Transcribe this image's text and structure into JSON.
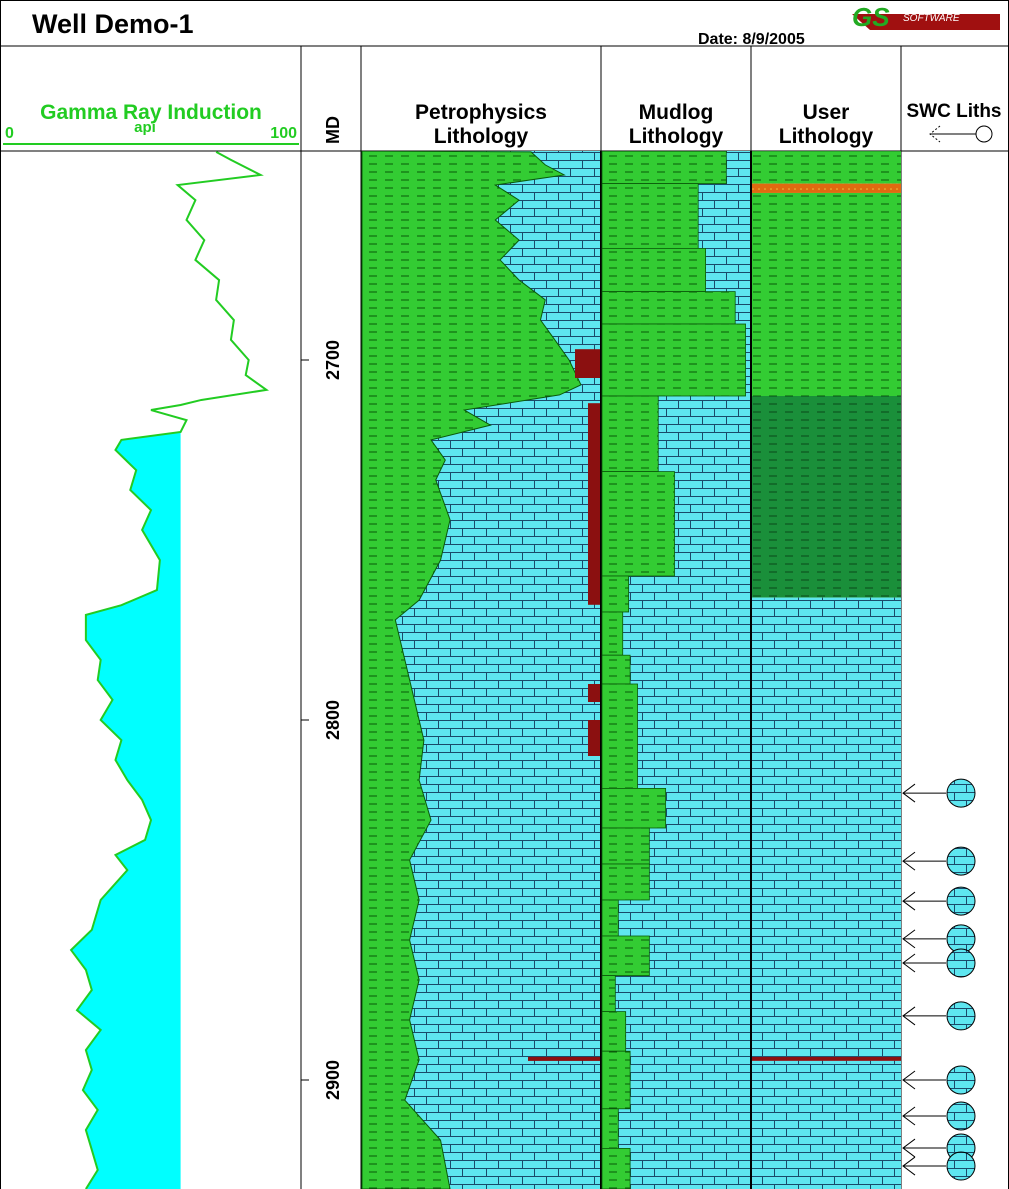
{
  "header": {
    "title": "Well Demo-1",
    "date": "Date: 8/9/2005",
    "logo_text": "GS SOFTWARE INC."
  },
  "tracks": {
    "gr": {
      "title": "Gamma Ray Induction",
      "unit": "api",
      "min_label": "0",
      "max_label": "100",
      "color": "#22cc22",
      "fill_color": "#00ffff"
    },
    "depth": {
      "title": "MD"
    },
    "petro": {
      "title_line1": "Petrophysics",
      "title_line2": "Lithology"
    },
    "mudlog": {
      "title_line1": "Mudlog",
      "title_line2": "Lithology"
    },
    "user": {
      "title_line1": "User",
      "title_line2": "Lithology"
    },
    "swc": {
      "title": "SWC Liths"
    }
  },
  "colors": {
    "shale": "#33cc33",
    "dark_shale": "#1a8f3a",
    "limestone": "#5ee6f0",
    "coal": "#8b1010",
    "sand": "#e06a10"
  },
  "chart_data": {
    "type": "line",
    "depth_range": [
      2642,
      2930
    ],
    "depth_ticks": [
      "2700",
      "2800",
      "2900"
    ],
    "gamma_ray": {
      "xlim": [
        0,
        100
      ],
      "cutoff_api": 60,
      "depth": [
        2642.2,
        2644.4,
        2648.6,
        2651.4,
        2655.6,
        2661.1,
        2666.7,
        2672.2,
        2677.8,
        2683.3,
        2688.9,
        2694.4,
        2700,
        2704.2,
        2708.3,
        2711.1,
        2712.5,
        2713.9,
        2716.7,
        2720,
        2722.2,
        2725,
        2730.6,
        2736.1,
        2741.7,
        2747.2,
        2755.6,
        2763.9,
        2768.1,
        2770.8,
        2777.8,
        2783.3,
        2788.9,
        2794.4,
        2800,
        2805.6,
        2811.1,
        2816.7,
        2822.2,
        2827.8,
        2833.3,
        2837.5,
        2841.7,
        2850,
        2858.3,
        2863.9,
        2869.4,
        2875,
        2880.6,
        2886.1,
        2891.7,
        2897.2,
        2902.8,
        2908.3,
        2913.9,
        2919.4,
        2925,
        2930.3
      ],
      "api": [
        72,
        77,
        87,
        59,
        65,
        62,
        68,
        65,
        73,
        72,
        78,
        77,
        83,
        82,
        89,
        67,
        60,
        50,
        62,
        60,
        40,
        38,
        45,
        43,
        50,
        47,
        53,
        52,
        40,
        28,
        28,
        33,
        32,
        37,
        33,
        40,
        38,
        42,
        47,
        50,
        48,
        38,
        42,
        33,
        30,
        23,
        28,
        30,
        25,
        33,
        28,
        30,
        27,
        32,
        28,
        30,
        32,
        28
      ]
    },
    "petrophysics_shale_pct": {
      "depth": [
        2642.2,
        2645.8,
        2648.6,
        2651.4,
        2655.6,
        2661.1,
        2666.7,
        2672.2,
        2677.8,
        2683.3,
        2688.9,
        2694.4,
        2700,
        2706.9,
        2709.7,
        2713.9,
        2718.1,
        2722.2,
        2727.8,
        2733.3,
        2744.4,
        2755.6,
        2766.7,
        2772.2,
        2783.3,
        2794.4,
        2805.6,
        2816.7,
        2827.8,
        2838.9,
        2850,
        2861.1,
        2872.2,
        2883.3,
        2894.4,
        2905.6,
        2916.7,
        2930.3
      ],
      "shale": [
        71,
        77,
        85,
        56,
        66,
        56,
        66,
        58,
        66,
        77,
        75,
        81,
        87,
        92,
        83,
        43,
        54,
        29,
        35,
        31,
        37,
        33,
        24,
        14,
        18,
        22,
        26,
        24,
        29,
        20,
        24,
        20,
        24,
        20,
        24,
        18,
        33,
        37
      ]
    },
    "petrophysics_coal": [
      [
        2697,
        2705
      ],
      [
        2712,
        2768
      ],
      [
        2790,
        2795
      ],
      [
        2800,
        2810
      ],
      [
        2893.6,
        2894.7
      ]
    ],
    "mudlog_shale_pct": {
      "depth_top": [
        2642,
        2651,
        2669,
        2681,
        2690,
        2710,
        2731,
        2760,
        2770,
        2782,
        2790,
        2819,
        2830,
        2840,
        2850,
        2860,
        2871,
        2881,
        2892,
        2908,
        2919
      ],
      "shale": [
        84,
        65,
        70,
        90,
        97,
        38,
        49,
        18,
        14,
        19,
        24,
        43,
        32,
        32,
        11,
        32,
        9,
        16,
        19,
        11,
        19
      ]
    },
    "user_lithology": [
      {
        "top": 2642,
        "base": 2651,
        "lith": "shale"
      },
      {
        "top": 2651,
        "base": 2653.6,
        "lith": "sand"
      },
      {
        "top": 2653.6,
        "base": 2710,
        "lith": "shale"
      },
      {
        "top": 2710,
        "base": 2766,
        "lith": "dark_shale"
      },
      {
        "top": 2766,
        "base": 2893.6,
        "lith": "limestone"
      },
      {
        "top": 2893.6,
        "base": 2894.7,
        "lith": "coal"
      },
      {
        "top": 2894.7,
        "base": 2930.3,
        "lith": "limestone"
      }
    ],
    "swc_depths": [
      2820.3,
      2839.2,
      2850.3,
      2860.8,
      2867.5,
      2882.2,
      2900,
      2910,
      2918.9,
      2923.9
    ]
  }
}
